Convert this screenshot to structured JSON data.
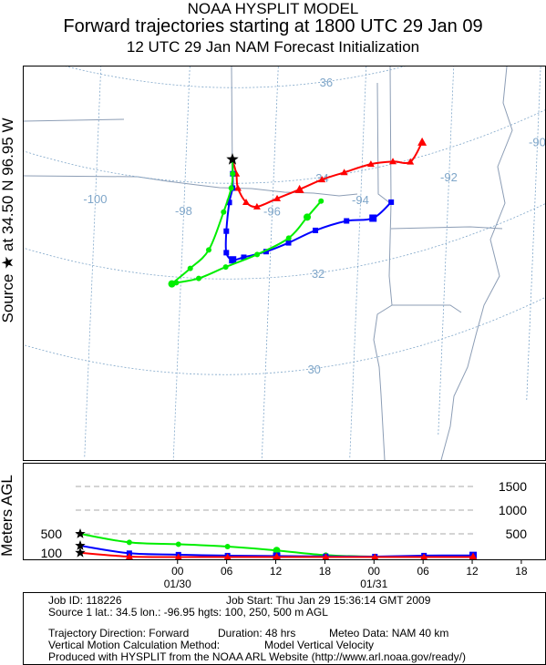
{
  "header": {
    "line1": "NOAA HYSPLIT MODEL",
    "line2": "Forward trajectories starting at 1800 UTC 29 Jan 09",
    "line3": "12 UTC 29 Jan     NAM  Forecast Initialization"
  },
  "side_label": "Source ★ at   34.50 N   96.95 W",
  "height_axis_label": "Meters AGL",
  "chart_data": [
    {
      "type": "line",
      "panel": "map",
      "lat_labels": [
        "36",
        "34",
        "32",
        "30"
      ],
      "lon_labels": [
        "-100",
        "-98",
        "-96",
        "-94",
        "-92",
        "-90"
      ],
      "source": {
        "lat": 34.5,
        "lon": -96.95
      },
      "series": [
        {
          "color": "#ff0000",
          "marker": "triangle",
          "points": [
            [
              -96.95,
              34.5
            ],
            [
              -96.85,
              34.2
            ],
            [
              -96.8,
              33.9
            ],
            [
              -96.6,
              33.6
            ],
            [
              -96.35,
              33.5
            ],
            [
              -95.9,
              33.65
            ],
            [
              -95.4,
              33.8
            ],
            [
              -94.9,
              33.95
            ],
            [
              -94.4,
              34.03
            ],
            [
              -93.8,
              34.1
            ],
            [
              -93.3,
              34.05
            ],
            [
              -92.9,
              33.95
            ],
            [
              -92.65,
              34.3
            ]
          ]
        },
        {
          "color": "#0000ff",
          "marker": "square",
          "points": [
            [
              -96.95,
              34.5
            ],
            [
              -96.93,
              34.2
            ],
            [
              -96.92,
              33.9
            ],
            [
              -96.98,
              33.6
            ],
            [
              -97.02,
              33.0
            ],
            [
              -97.0,
              32.55
            ],
            [
              -96.85,
              32.4
            ],
            [
              -96.6,
              32.45
            ],
            [
              -96.1,
              32.55
            ],
            [
              -95.6,
              32.7
            ],
            [
              -95.0,
              32.9
            ],
            [
              -94.3,
              33.0
            ],
            [
              -93.7,
              32.95
            ],
            [
              -93.3,
              33.2
            ]
          ]
        },
        {
          "color": "#00ee00",
          "marker": "circle",
          "points": [
            [
              -96.95,
              34.5
            ],
            [
              -96.93,
              34.2
            ],
            [
              -96.95,
              33.9
            ],
            [
              -97.1,
              33.4
            ],
            [
              -97.4,
              32.6
            ],
            [
              -97.8,
              32.2
            ],
            [
              -98.2,
              31.85
            ],
            [
              -98.1,
              31.88
            ],
            [
              -97.6,
              32.0
            ],
            [
              -97.0,
              32.25
            ],
            [
              -96.3,
              32.5
            ],
            [
              -95.6,
              32.8
            ],
            [
              -95.2,
              33.2
            ],
            [
              -94.9,
              33.5
            ]
          ]
        }
      ]
    },
    {
      "type": "line",
      "panel": "height",
      "x_unit": "hours after start",
      "left_ticks": [
        "500",
        "100"
      ],
      "right_ticks": [
        "1500",
        "1000",
        "500"
      ],
      "time_ticks": [
        "00",
        "06",
        "12",
        "18",
        "00",
        "06",
        "12",
        "18"
      ],
      "date_labels": [
        "01/30",
        "01/31"
      ],
      "series": [
        {
          "color": "#00ee00",
          "marker": "circle",
          "start_height": 500,
          "x": [
            0,
            6,
            12,
            18,
            24,
            30,
            36,
            42,
            48
          ],
          "y": [
            500,
            320,
            280,
            230,
            150,
            50,
            20,
            30,
            35
          ]
        },
        {
          "color": "#0000ff",
          "marker": "square",
          "start_height": 250,
          "x": [
            0,
            6,
            12,
            18,
            24,
            30,
            36,
            42,
            48
          ],
          "y": [
            250,
            90,
            60,
            40,
            30,
            25,
            20,
            40,
            45
          ]
        },
        {
          "color": "#ff0000",
          "marker": "triangle",
          "start_height": 100,
          "x": [
            0,
            6,
            12,
            18,
            24,
            30,
            36,
            42,
            48
          ],
          "y": [
            100,
            20,
            10,
            10,
            10,
            10,
            10,
            10,
            10
          ]
        }
      ]
    }
  ],
  "footer": {
    "job_id": "Job ID: 118226",
    "job_start": "Job Start: Thu Jan 29 15:36:14 GMT 2009",
    "source": "Source 1 lat.: 34.5  lon.: -96.95  hgts: 100, 250, 500 m AGL",
    "direction": "Trajectory Direction: Forward",
    "duration": "Duration: 48 hrs",
    "meteo": "Meteo Data: NAM 40 km",
    "vertical": "Vertical Motion Calculation Method:",
    "vertical_value": "Model Vertical Velocity",
    "produced": "Produced with HYSPLIT from the NOAA ARL Website (http://www.arl.noaa.gov/ready/)"
  }
}
